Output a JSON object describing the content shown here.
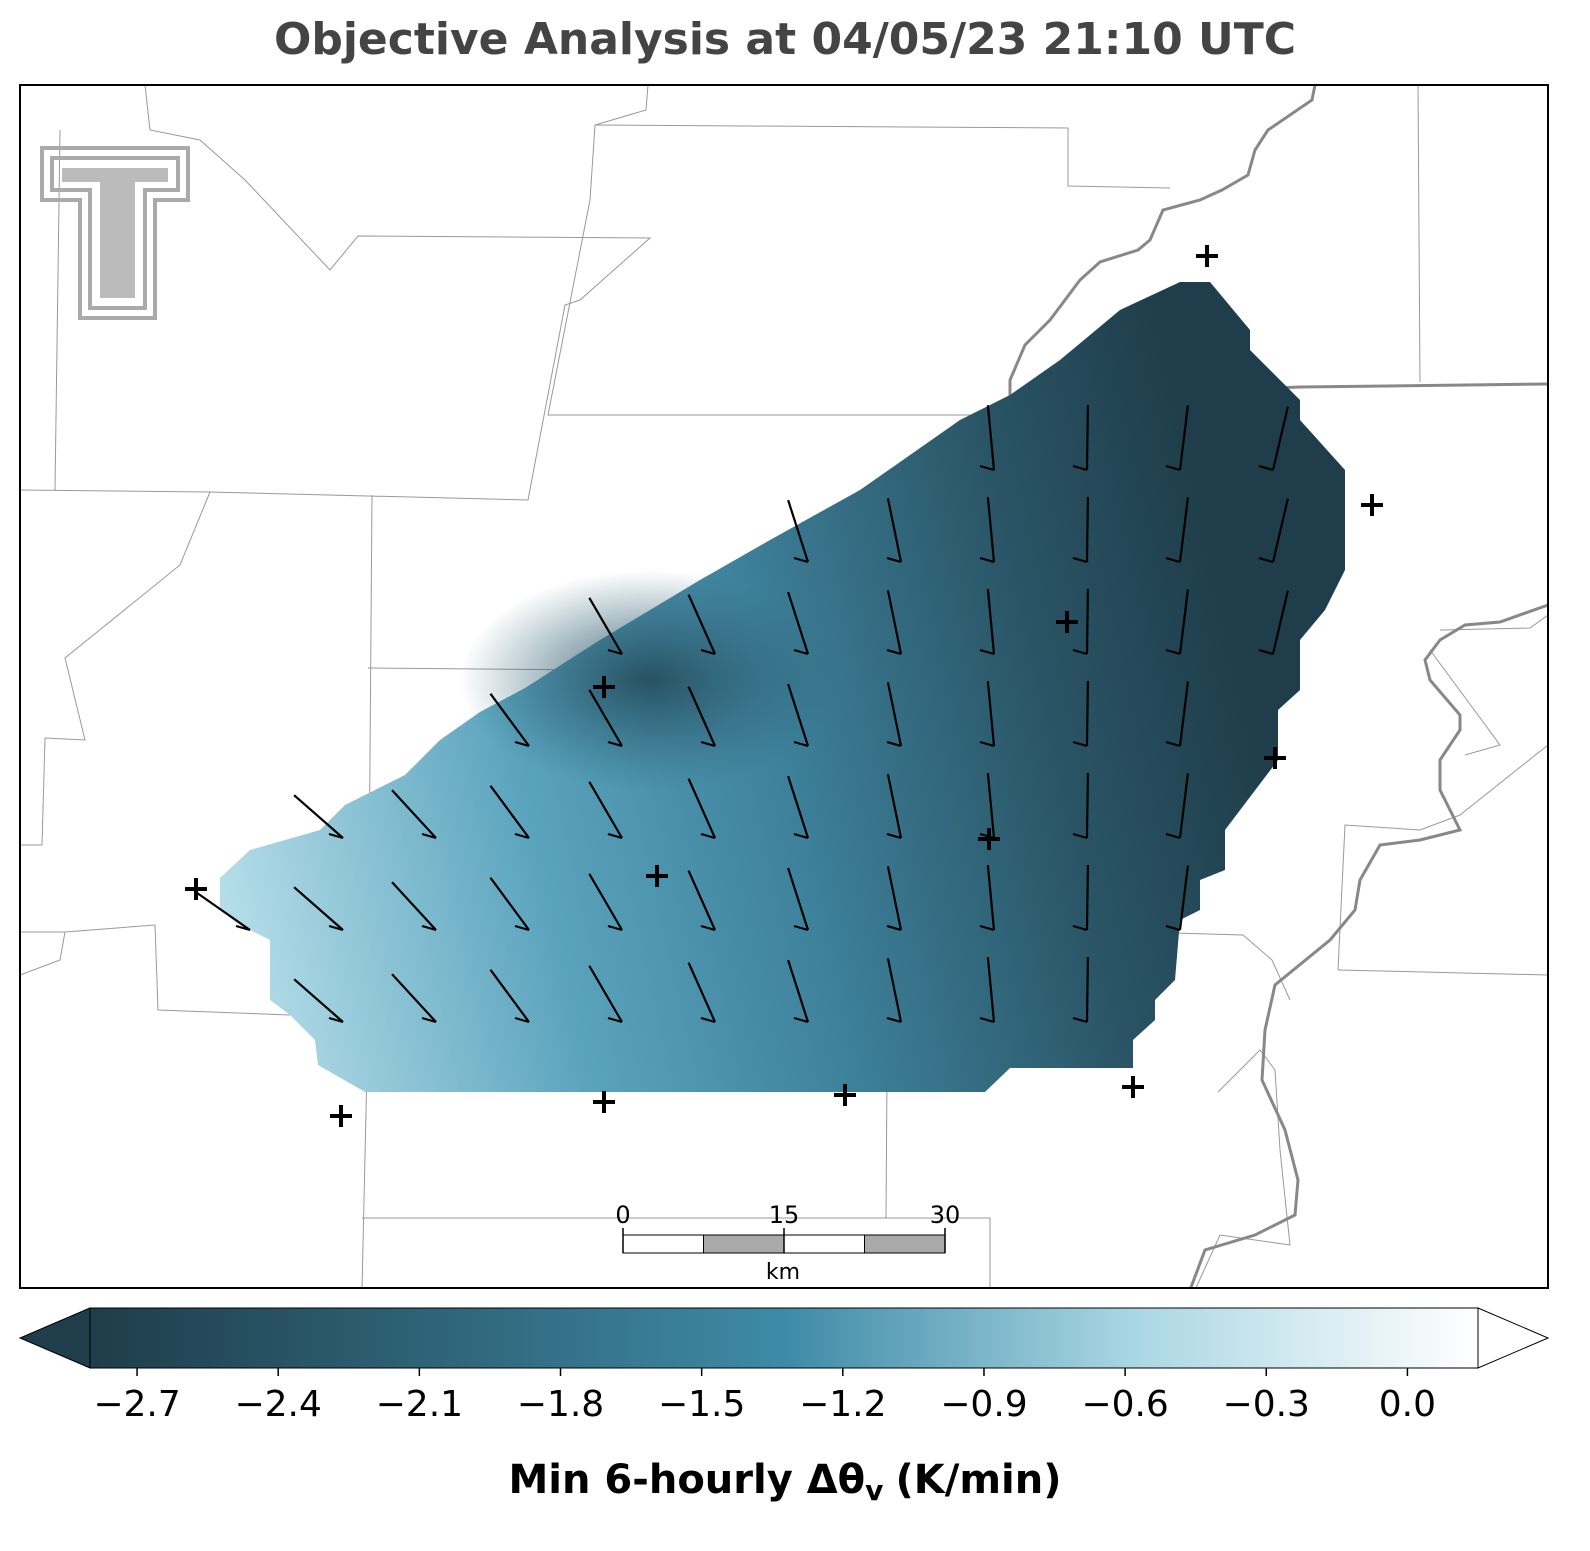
{
  "title": "Objective Analysis at 04/05/23 21:10 UTC",
  "colorbar": {
    "clim": [
      -2.8,
      0.15
    ],
    "colors": [
      "#1f3d4a",
      "#2f6478",
      "#3e8aa6",
      "#a9d6e3",
      "#ffffff"
    ],
    "ticks": [
      {
        "value": -2.7,
        "label": "−2.7"
      },
      {
        "value": -2.4,
        "label": "−2.4"
      },
      {
        "value": -2.1,
        "label": "−2.1"
      },
      {
        "value": -1.8,
        "label": "−1.8"
      },
      {
        "value": -1.5,
        "label": "−1.5"
      },
      {
        "value": -1.2,
        "label": "−1.2"
      },
      {
        "value": -0.9,
        "label": "−0.9"
      },
      {
        "value": -0.6,
        "label": "−0.6"
      },
      {
        "value": -0.3,
        "label": "−0.3"
      },
      {
        "value": 0.0,
        "label": "0.0"
      }
    ],
    "label": "Min 6-hourly Δθ",
    "label_sub": "v",
    "label_unit": "(K/min)"
  },
  "scale_bar": {
    "xlim": [
      0,
      30
    ],
    "ticks": [
      0,
      15,
      30
    ],
    "unit": "km"
  }
}
